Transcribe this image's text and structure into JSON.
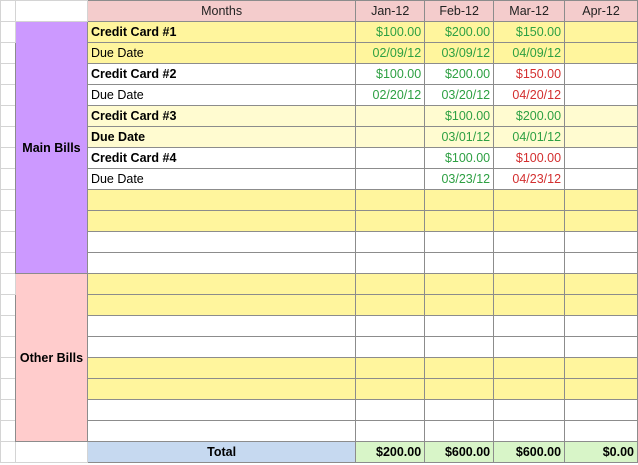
{
  "header": {
    "months_label": "Months",
    "month_cols": [
      "Jan-12",
      "Feb-12",
      "Mar-12",
      "Apr-12"
    ]
  },
  "groups": {
    "main_bills": "Main Bills",
    "other_bills": "Other Bills"
  },
  "main_rows": [
    {
      "label": "Credit Card #1",
      "bold": true,
      "bg": "yel",
      "cells": [
        [
          "$100.00",
          "green"
        ],
        [
          "$200.00",
          "green"
        ],
        [
          "$150.00",
          "green"
        ],
        [
          "",
          ""
        ]
      ]
    },
    {
      "label": "Due Date",
      "bold": false,
      "bg": "yel",
      "cells": [
        [
          "02/09/12",
          "green"
        ],
        [
          "03/09/12",
          "green"
        ],
        [
          "04/09/12",
          "green"
        ],
        [
          "",
          ""
        ]
      ]
    },
    {
      "label": "Credit Card #2",
      "bold": true,
      "bg": "white",
      "cells": [
        [
          "$100.00",
          "green"
        ],
        [
          "$200.00",
          "green"
        ],
        [
          "$150.00",
          "red"
        ],
        [
          "",
          ""
        ]
      ]
    },
    {
      "label": "Due Date",
      "bold": false,
      "bg": "white",
      "cells": [
        [
          "02/20/12",
          "green"
        ],
        [
          "03/20/12",
          "green"
        ],
        [
          "04/20/12",
          "red"
        ],
        [
          "",
          ""
        ]
      ]
    },
    {
      "label": "Credit Card #3",
      "bold": true,
      "bg": "pale",
      "cells": [
        [
          "",
          ""
        ],
        [
          "$100.00",
          "green"
        ],
        [
          "$200.00",
          "green"
        ],
        [
          "",
          ""
        ]
      ]
    },
    {
      "label": "Due Date",
      "bold": true,
      "bg": "pale",
      "cells": [
        [
          "",
          ""
        ],
        [
          "03/01/12",
          "green"
        ],
        [
          "04/01/12",
          "green"
        ],
        [
          "",
          ""
        ]
      ]
    },
    {
      "label": "Credit Card #4",
      "bold": true,
      "bg": "white",
      "cells": [
        [
          "",
          ""
        ],
        [
          "$100.00",
          "green"
        ],
        [
          "$100.00",
          "red"
        ],
        [
          "",
          ""
        ]
      ]
    },
    {
      "label": "Due Date",
      "bold": false,
      "bg": "white",
      "cells": [
        [
          "",
          ""
        ],
        [
          "03/23/12",
          "green"
        ],
        [
          "04/23/12",
          "red"
        ],
        [
          "",
          ""
        ]
      ]
    },
    {
      "label": "",
      "bold": false,
      "bg": "yel",
      "cells": [
        [
          "",
          ""
        ],
        [
          "",
          ""
        ],
        [
          "",
          ""
        ],
        [
          "",
          ""
        ]
      ]
    },
    {
      "label": "",
      "bold": false,
      "bg": "yel",
      "cells": [
        [
          "",
          ""
        ],
        [
          "",
          ""
        ],
        [
          "",
          ""
        ],
        [
          "",
          ""
        ]
      ]
    },
    {
      "label": "",
      "bold": false,
      "bg": "white",
      "cells": [
        [
          "",
          ""
        ],
        [
          "",
          ""
        ],
        [
          "",
          ""
        ],
        [
          "",
          ""
        ]
      ]
    },
    {
      "label": "",
      "bold": false,
      "bg": "white",
      "cells": [
        [
          "",
          ""
        ],
        [
          "",
          ""
        ],
        [
          "",
          ""
        ],
        [
          "",
          ""
        ]
      ]
    }
  ],
  "other_rows": [
    {
      "label": "",
      "bold": false,
      "bg": "yel",
      "cells": [
        [
          "",
          ""
        ],
        [
          "",
          ""
        ],
        [
          "",
          ""
        ],
        [
          "",
          ""
        ]
      ]
    },
    {
      "label": "",
      "bold": false,
      "bg": "yel",
      "cells": [
        [
          "",
          ""
        ],
        [
          "",
          ""
        ],
        [
          "",
          ""
        ],
        [
          "",
          ""
        ]
      ]
    },
    {
      "label": "",
      "bold": false,
      "bg": "white",
      "cells": [
        [
          "",
          ""
        ],
        [
          "",
          ""
        ],
        [
          "",
          ""
        ],
        [
          "",
          ""
        ]
      ]
    },
    {
      "label": "",
      "bold": false,
      "bg": "white",
      "cells": [
        [
          "",
          ""
        ],
        [
          "",
          ""
        ],
        [
          "",
          ""
        ],
        [
          "",
          ""
        ]
      ]
    },
    {
      "label": "",
      "bold": false,
      "bg": "yel",
      "cells": [
        [
          "",
          ""
        ],
        [
          "",
          ""
        ],
        [
          "",
          ""
        ],
        [
          "",
          ""
        ]
      ]
    },
    {
      "label": "",
      "bold": false,
      "bg": "yel",
      "cells": [
        [
          "",
          ""
        ],
        [
          "",
          ""
        ],
        [
          "",
          ""
        ],
        [
          "",
          ""
        ]
      ]
    },
    {
      "label": "",
      "bold": false,
      "bg": "white",
      "cells": [
        [
          "",
          ""
        ],
        [
          "",
          ""
        ],
        [
          "",
          ""
        ],
        [
          "",
          ""
        ]
      ]
    },
    {
      "label": "",
      "bold": false,
      "bg": "white",
      "cells": [
        [
          "",
          ""
        ],
        [
          "",
          ""
        ],
        [
          "",
          ""
        ],
        [
          "",
          ""
        ]
      ]
    }
  ],
  "total": {
    "label": "Total",
    "values": [
      "$200.00",
      "$600.00",
      "$600.00",
      "$0.00"
    ]
  },
  "colors": {
    "group_main": "#cc99ff",
    "group_other": "#ffcccc",
    "header": "#f4cccc",
    "yellow_row": "#fff59d",
    "total_label": "#c6d9f0",
    "total_value": "#d8f5c8",
    "value_green": "#2ea043",
    "value_red": "#d32f2f"
  }
}
